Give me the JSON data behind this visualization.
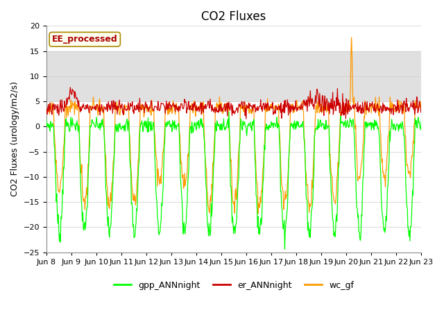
{
  "title": "CO2 Fluxes",
  "ylabel": "CO2 Fluxes (urology/m2/s)",
  "ylim": [
    -25,
    20
  ],
  "yticks": [
    -25,
    -20,
    -15,
    -10,
    -5,
    0,
    5,
    10,
    15,
    20
  ],
  "xtick_labels": [
    "Jun 8",
    "Jun 9",
    "Jun 10",
    "Jun 11",
    "Jun 12",
    "Jun 13",
    "Jun 14",
    "Jun 15",
    "Jun 16",
    "Jun 17",
    "Jun 18",
    "Jun 19",
    "Jun 20",
    "Jun 21",
    "Jun 22",
    "Jun 23"
  ],
  "annotation_text": "EE_processed",
  "annotation_color": "#aa0000",
  "annotation_bg": "#fffff0",
  "annotation_edge": "#aa8800",
  "colors": {
    "gpp_ANNnight": "#00ff00",
    "er_ANNnight": "#cc0000",
    "wc_gf": "#ff9900"
  },
  "legend_labels": [
    "gpp_ANNnight",
    "er_ANNnight",
    "wc_gf"
  ],
  "bg_band_color": "#e0e0e0",
  "bg_band_range": [
    5,
    15
  ],
  "title_fontsize": 12,
  "axis_fontsize": 9,
  "tick_fontsize": 8,
  "legend_fontsize": 9
}
